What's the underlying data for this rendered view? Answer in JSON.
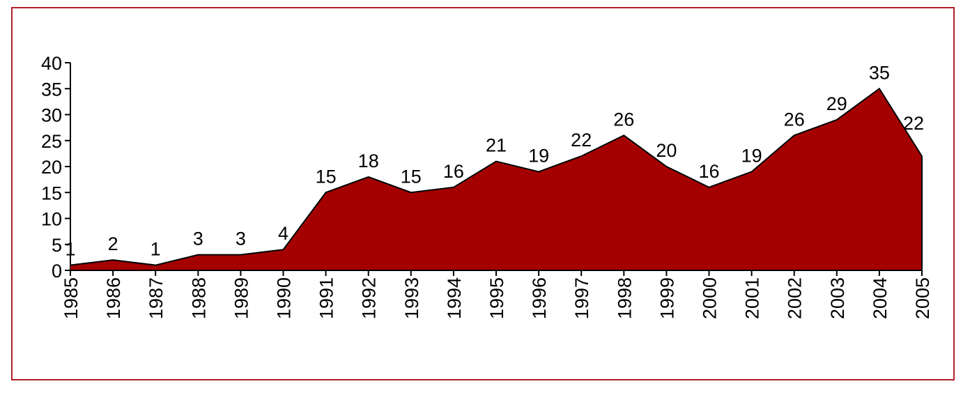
{
  "chart_data": {
    "type": "area",
    "x": [
      "1985",
      "1986",
      "1987",
      "1988",
      "1989",
      "1990",
      "1991",
      "1992",
      "1993",
      "1994",
      "1995",
      "1996",
      "1997",
      "1998",
      "1999",
      "2000",
      "2001",
      "2002",
      "2003",
      "2004",
      "2005"
    ],
    "series": [
      {
        "values": [
          1,
          2,
          1,
          3,
          3,
          4,
          15,
          18,
          15,
          16,
          21,
          19,
          22,
          26,
          20,
          16,
          19,
          26,
          29,
          35,
          22
        ]
      }
    ],
    "ylim": [
      0,
      40
    ],
    "yticks": [
      0,
      5,
      10,
      15,
      20,
      25,
      30,
      35,
      40
    ],
    "title": "",
    "xlabel": "",
    "ylabel": "",
    "grid": false,
    "colors": {
      "fill": "#a50000",
      "stroke": "#000000",
      "frame": "#b0202a"
    }
  }
}
